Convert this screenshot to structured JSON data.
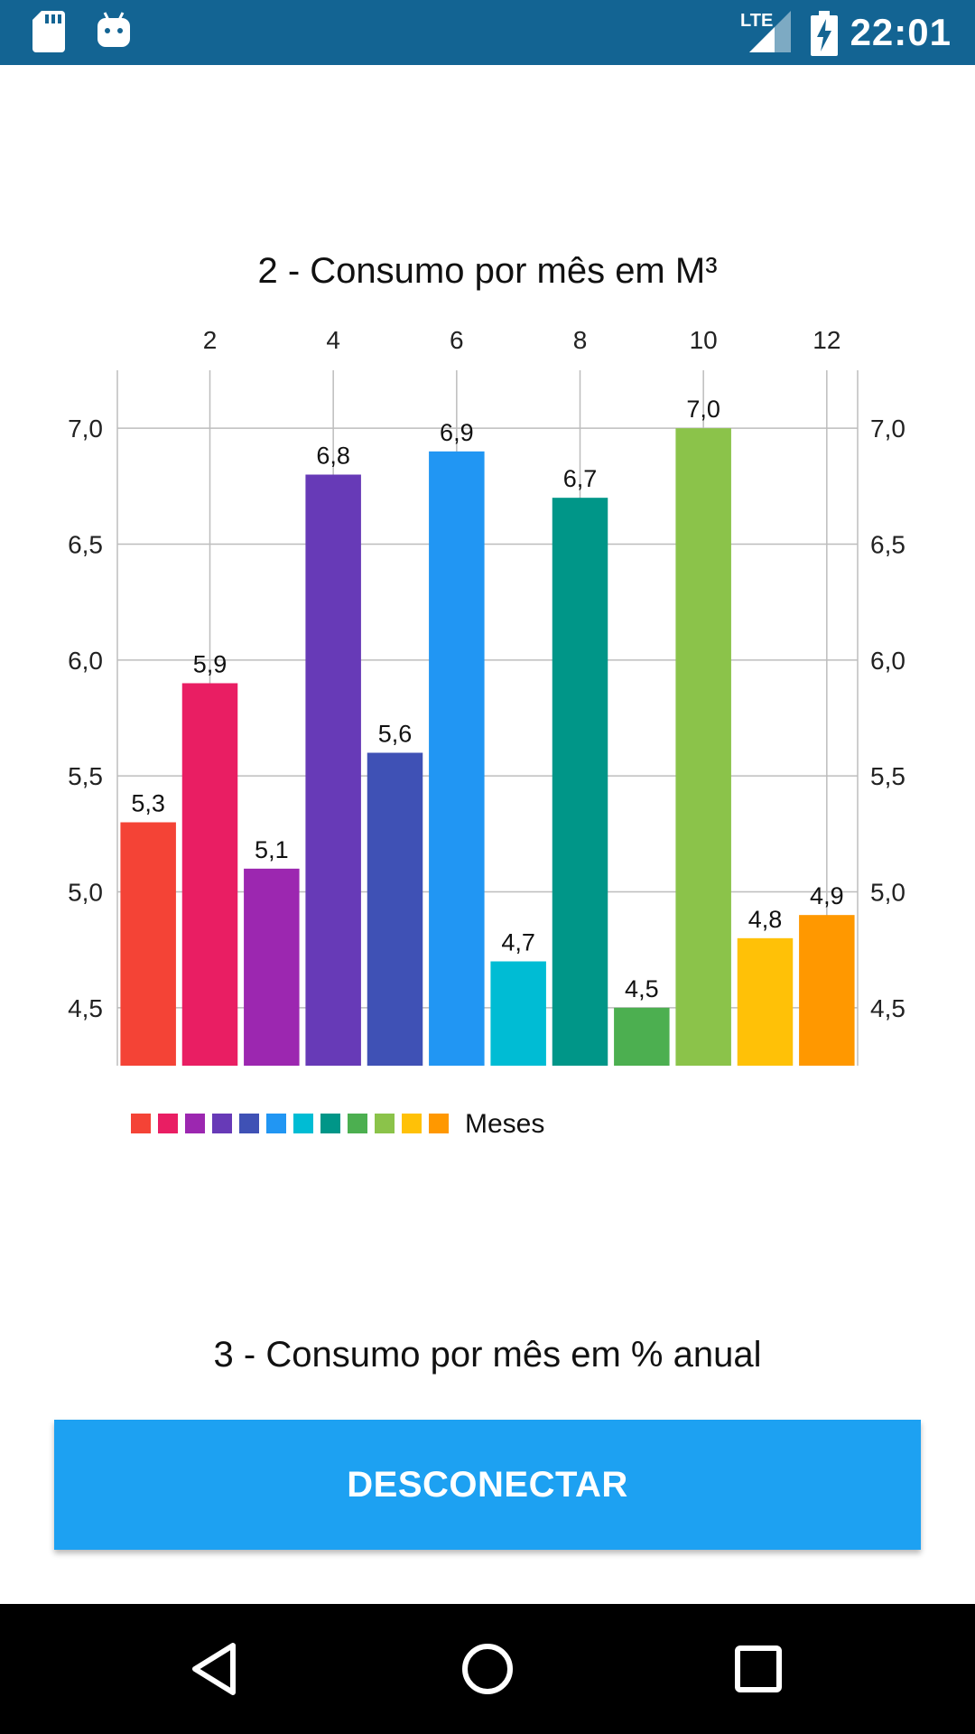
{
  "status_bar": {
    "time": "22:01",
    "network_label": "LTE",
    "icons": [
      "sd-card-icon",
      "android-debug-icon",
      "signal-icon",
      "battery-charging-icon"
    ]
  },
  "chart": {
    "title": "2 - Consumo por mês em M³"
  },
  "chart_data": {
    "type": "bar",
    "x": [
      1,
      2,
      3,
      4,
      5,
      6,
      7,
      8,
      9,
      10,
      11,
      12
    ],
    "values": [
      5.3,
      5.9,
      5.1,
      6.8,
      5.6,
      6.9,
      4.7,
      6.7,
      4.5,
      7.0,
      4.8,
      4.9
    ],
    "value_labels": [
      "5,3",
      "5,9",
      "5,1",
      "6,8",
      "5,6",
      "6,9",
      "4,7",
      "6,7",
      "4,5",
      "7,0",
      "4,8",
      "4,9"
    ],
    "colors": [
      "#f44336",
      "#e91e63",
      "#9c27b0",
      "#673ab7",
      "#3f51b5",
      "#2196f3",
      "#00bcd4",
      "#009688",
      "#4caf50",
      "#8bc34a",
      "#ffc107",
      "#ff9800"
    ],
    "x_ticks": [
      "2",
      "4",
      "6",
      "8",
      "10",
      "12"
    ],
    "x_tick_values": [
      2,
      4,
      6,
      8,
      10,
      12
    ],
    "y_ticks": [
      "4,5",
      "5,0",
      "5,5",
      "6,0",
      "6,5",
      "7,0"
    ],
    "y_tick_values": [
      4.5,
      5.0,
      5.5,
      6.0,
      6.5,
      7.0
    ],
    "ylim": [
      4.25,
      7.25
    ],
    "xlim": [
      0.5,
      12.5
    ],
    "x_axis_position": "top",
    "y_axis_position": "both",
    "grid": true,
    "legend": {
      "label": "Meses",
      "placement": "bottom-left"
    }
  },
  "section": {
    "title": "3 - Consumo por mês em % anual"
  },
  "actions": {
    "disconnect_label": "DESCONECTAR"
  },
  "nav_bar": {
    "icons": [
      "back-icon",
      "home-icon",
      "recents-icon"
    ]
  }
}
